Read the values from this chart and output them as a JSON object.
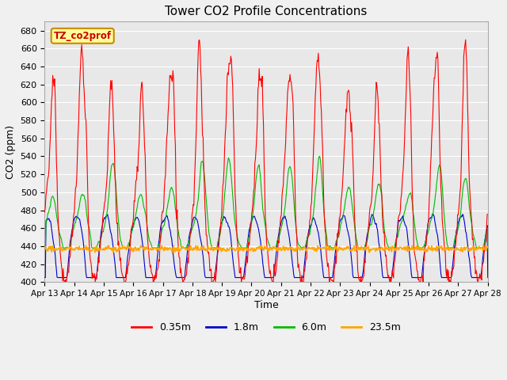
{
  "title": "Tower CO2 Profile Concentrations",
  "xlabel": "Time",
  "ylabel": "CO2 (ppm)",
  "ylim": [
    400,
    690
  ],
  "xlim": [
    0,
    360
  ],
  "background_color": "#e8e8e8",
  "grid_color": "#ffffff",
  "legend_label": "TZ_co2prof",
  "series": {
    "0.35m": {
      "color": "#ff0000",
      "label": "0.35m"
    },
    "1.8m": {
      "color": "#0000cc",
      "label": "1.8m"
    },
    "6.0m": {
      "color": "#00bb00",
      "label": "6.0m"
    },
    "23.5m": {
      "color": "#ffa500",
      "label": "23.5m"
    }
  },
  "xtick_labels": [
    "Apr 13",
    "Apr 14",
    "Apr 15",
    "Apr 16",
    "Apr 17",
    "Apr 18",
    "Apr 19",
    "Apr 20",
    "Apr 21",
    "Apr 22",
    "Apr 23",
    "Apr 24",
    "Apr 25",
    "Apr 26",
    "Apr 27",
    "Apr 28"
  ],
  "xtick_positions": [
    0,
    24,
    48,
    72,
    96,
    120,
    144,
    168,
    192,
    216,
    240,
    264,
    288,
    312,
    336,
    360
  ],
  "yticks": [
    400,
    420,
    440,
    460,
    480,
    500,
    520,
    540,
    560,
    580,
    600,
    620,
    640,
    660,
    680
  ],
  "orange_level": 437
}
